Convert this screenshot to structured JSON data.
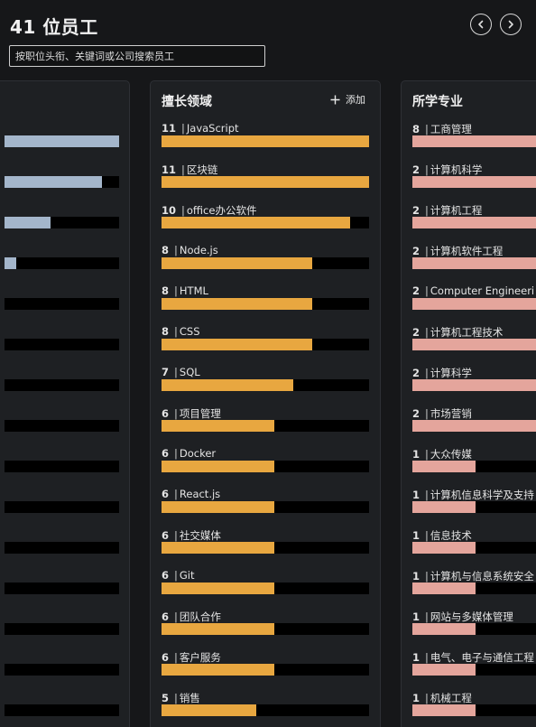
{
  "header": {
    "title": "41 位员工",
    "search_placeholder": "按职位头衔、关键词或公司搜索员工",
    "prev_icon": "chevron-left-icon",
    "next_icon": "chevron-right-icon"
  },
  "left_panel": {
    "bars": [
      1.0,
      0.85,
      0.4,
      0.1,
      0,
      0,
      0,
      0,
      0,
      0,
      0,
      0,
      0,
      0,
      0
    ]
  },
  "skills_panel": {
    "title": "擅长领域",
    "add_label": "添加",
    "max": 11,
    "items": [
      {
        "count": "11",
        "label": "JavaScript",
        "value": 11
      },
      {
        "count": "11",
        "label": "区块链",
        "value": 11
      },
      {
        "count": "10",
        "label": "office办公软件",
        "value": 10
      },
      {
        "count": "8",
        "label": "Node.js",
        "value": 8
      },
      {
        "count": "8",
        "label": "HTML",
        "value": 8
      },
      {
        "count": "8",
        "label": "CSS",
        "value": 8
      },
      {
        "count": "7",
        "label": "SQL",
        "value": 7
      },
      {
        "count": "6",
        "label": "项目管理",
        "value": 6
      },
      {
        "count": "6",
        "label": "Docker",
        "value": 6
      },
      {
        "count": "6",
        "label": "React.js",
        "value": 6
      },
      {
        "count": "6",
        "label": "社交媒体",
        "value": 6
      },
      {
        "count": "6",
        "label": "Git",
        "value": 6
      },
      {
        "count": "6",
        "label": "团队合作",
        "value": 6
      },
      {
        "count": "6",
        "label": "客户服务",
        "value": 6
      },
      {
        "count": "5",
        "label": "销售",
        "value": 5
      }
    ]
  },
  "majors_panel": {
    "title": "所学专业",
    "max": 2,
    "items": [
      {
        "count": "8",
        "label": "工商管理",
        "value": 8
      },
      {
        "count": "2",
        "label": "计算机科学",
        "value": 2
      },
      {
        "count": "2",
        "label": "计算机工程",
        "value": 2
      },
      {
        "count": "2",
        "label": "计算机软件工程",
        "value": 2
      },
      {
        "count": "2",
        "label": "Computer Engineeri",
        "value": 2
      },
      {
        "count": "2",
        "label": "计算机工程技术",
        "value": 2
      },
      {
        "count": "2",
        "label": "计算科学",
        "value": 2
      },
      {
        "count": "2",
        "label": "市场营销",
        "value": 2
      },
      {
        "count": "1",
        "label": "大众传媒",
        "value": 1
      },
      {
        "count": "1",
        "label": "计算机信息科学及支持",
        "value": 1
      },
      {
        "count": "1",
        "label": "信息技术",
        "value": 1
      },
      {
        "count": "1",
        "label": "计算机与信息系统安全",
        "value": 1
      },
      {
        "count": "1",
        "label": "网站与多媒体管理",
        "value": 1
      },
      {
        "count": "1",
        "label": "电气、电子与通信工程",
        "value": 1
      },
      {
        "count": "1",
        "label": "机械工程",
        "value": 1
      }
    ]
  },
  "colors": {
    "skills_bar": "#e8a740",
    "majors_bar": "#e4a59c",
    "left_bar": "#a4b6cb",
    "track": "#000000"
  }
}
